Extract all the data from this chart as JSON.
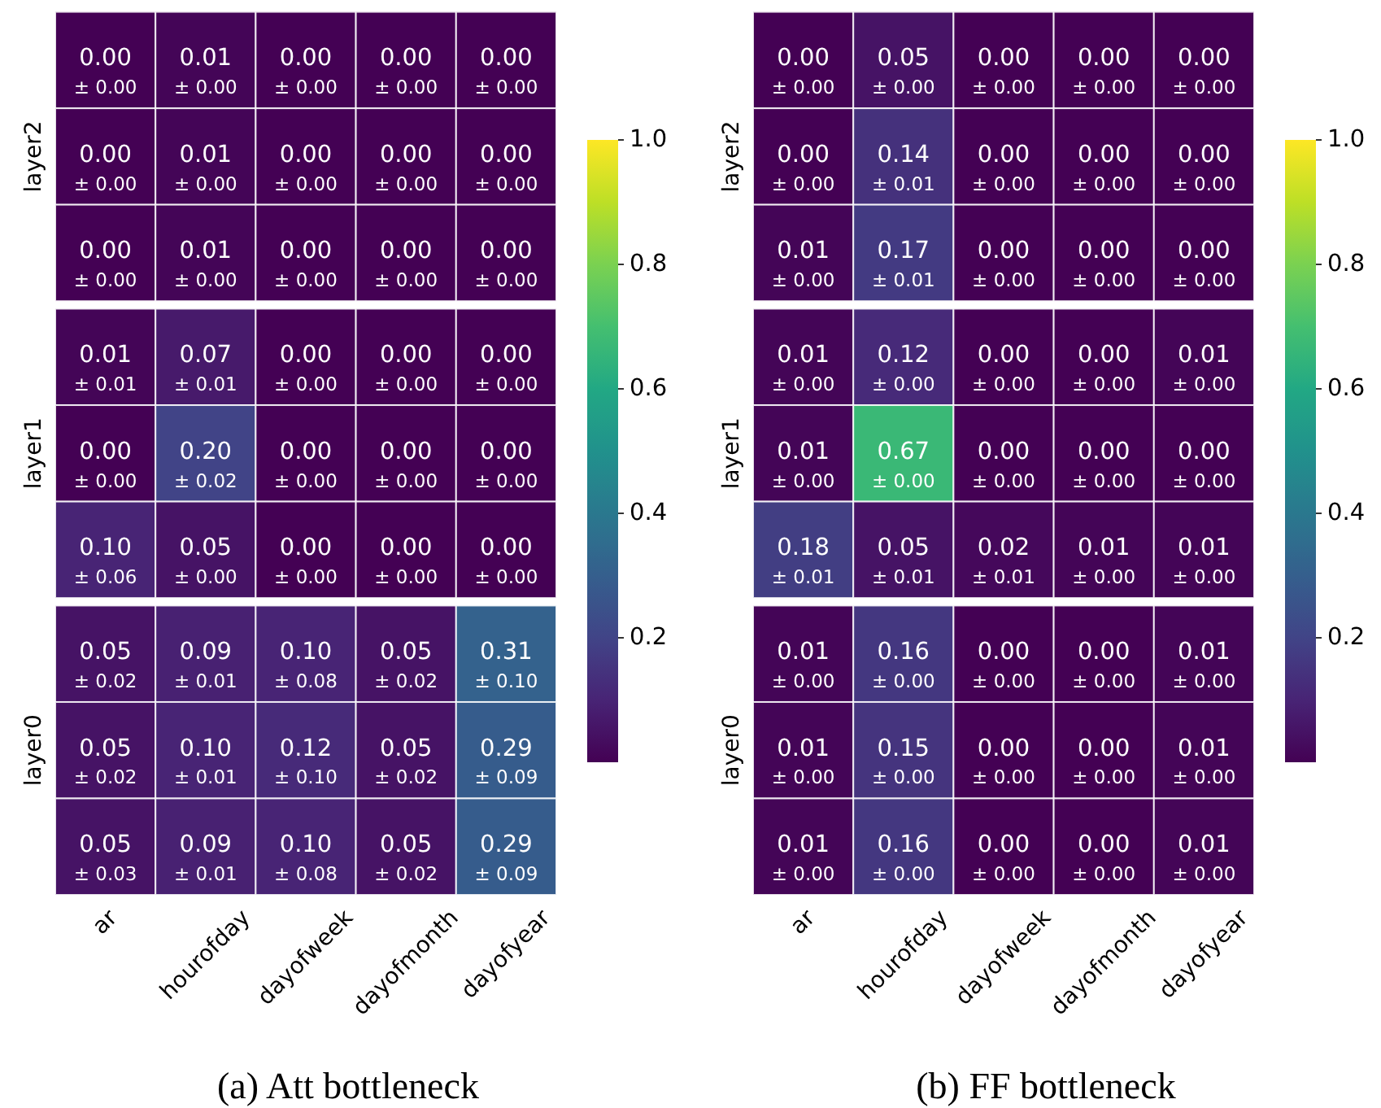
{
  "chart_data": [
    {
      "type": "heatmap",
      "categories": [
        "ar",
        "hourofday",
        "dayofweek",
        "dayofmonth",
        "dayofyear"
      ],
      "y_categories": [
        null,
        "layer2",
        null,
        null,
        "layer1",
        null,
        null,
        "layer0",
        null
      ],
      "cells": [
        [
          0,
          0.01,
          0,
          0,
          0
        ],
        [
          0,
          0.01,
          0,
          0,
          0
        ],
        [
          0,
          0.01,
          0,
          0,
          0
        ],
        [
          0.01,
          0.07,
          0,
          0,
          0
        ],
        [
          0,
          0.2,
          0,
          0,
          0
        ],
        [
          0.1,
          0.05,
          0,
          0,
          0
        ],
        [
          0.05,
          0.09,
          0.1,
          0.05,
          0.31
        ],
        [
          0.05,
          0.1,
          0.12,
          0.05,
          0.29
        ],
        [
          0.05,
          0.09,
          0.1,
          0.05,
          0.29
        ]
      ],
      "cell_labels": [
        [
          "0.00\n± 0.00",
          "0.01\n± 0.00",
          "0.00\n± 0.00",
          "0.00\n± 0.00",
          "0.00\n± 0.00"
        ],
        [
          "0.00\n± 0.00",
          "0.01\n± 0.00",
          "0.00\n± 0.00",
          "0.00\n± 0.00",
          "0.00\n± 0.00"
        ],
        [
          "0.00\n± 0.00",
          "0.01\n± 0.00",
          "0.00\n± 0.00",
          "0.00\n± 0.00",
          "0.00\n± 0.00"
        ],
        [
          "0.01\n± 0.01",
          "0.07\n± 0.01",
          "0.00\n± 0.00",
          "0.00\n± 0.00",
          "0.00\n± 0.00"
        ],
        [
          "0.00\n± 0.00",
          "0.20\n± 0.02",
          "0.00\n± 0.00",
          "0.00\n± 0.00",
          "0.00\n± 0.00"
        ],
        [
          "0.10\n± 0.06",
          "0.05\n± 0.00",
          "0.00\n± 0.00",
          "0.00\n± 0.00",
          "0.00\n± 0.00"
        ],
        [
          "0.05\n± 0.02",
          "0.09\n± 0.01",
          "0.10\n± 0.08",
          "0.05\n± 0.02",
          "0.31\n± 0.10"
        ],
        [
          "0.05\n± 0.02",
          "0.10\n± 0.01",
          "0.12\n± 0.10",
          "0.05\n± 0.02",
          "0.29\n± 0.09"
        ],
        [
          "0.05\n± 0.03",
          "0.09\n± 0.01",
          "0.10\n± 0.08",
          "0.05\n± 0.02",
          "0.29\n± 0.09"
        ]
      ],
      "clim": [
        0,
        1
      ],
      "cticks": [
        0.2,
        0.4,
        0.6,
        0.8,
        {
          "value": 1,
          "label": "1.0"
        }
      ],
      "annotations": [
        "(a) Att bottleneck"
      ]
    },
    {
      "type": "heatmap",
      "categories": [
        "ar",
        "hourofday",
        "dayofweek",
        "dayofmonth",
        "dayofyear"
      ],
      "y_categories": [
        null,
        "layer2",
        null,
        null,
        "layer1",
        null,
        null,
        "layer0",
        null
      ],
      "cells": [
        [
          0,
          0.05,
          0,
          0,
          0
        ],
        [
          0,
          0.14,
          0,
          0,
          0
        ],
        [
          0.01,
          0.17,
          0,
          0,
          0
        ],
        [
          0.01,
          0.12,
          0,
          0,
          0.01
        ],
        [
          0.01,
          0.67,
          0,
          0,
          0
        ],
        [
          0.18,
          0.05,
          0.02,
          0.01,
          0.01
        ],
        [
          0.01,
          0.16,
          0,
          0,
          0.01
        ],
        [
          0.01,
          0.15,
          0,
          0,
          0.01
        ],
        [
          0.01,
          0.16,
          0,
          0,
          0.01
        ]
      ],
      "cell_labels": [
        [
          "0.00\n± 0.00",
          "0.05\n± 0.00",
          "0.00\n± 0.00",
          "0.00\n± 0.00",
          "0.00\n± 0.00"
        ],
        [
          "0.00\n± 0.00",
          "0.14\n± 0.01",
          "0.00\n± 0.00",
          "0.00\n± 0.00",
          "0.00\n± 0.00"
        ],
        [
          "0.01\n± 0.00",
          "0.17\n± 0.01",
          "0.00\n± 0.00",
          "0.00\n± 0.00",
          "0.00\n± 0.00"
        ],
        [
          "0.01\n± 0.00",
          "0.12\n± 0.00",
          "0.00\n± 0.00",
          "0.00\n± 0.00",
          "0.01\n± 0.00"
        ],
        [
          "0.01\n± 0.00",
          "0.67\n± 0.00",
          "0.00\n± 0.00",
          "0.00\n± 0.00",
          "0.00\n± 0.00"
        ],
        [
          "0.18\n± 0.01",
          "0.05\n± 0.01",
          "0.02\n± 0.01",
          "0.01\n± 0.00",
          "0.01\n± 0.00"
        ],
        [
          "0.01\n± 0.00",
          "0.16\n± 0.00",
          "0.00\n± 0.00",
          "0.00\n± 0.00",
          "0.01\n± 0.00"
        ],
        [
          "0.01\n± 0.00",
          "0.15\n± 0.00",
          "0.00\n± 0.00",
          "0.00\n± 0.00",
          "0.01\n± 0.00"
        ],
        [
          "0.01\n± 0.00",
          "0.16\n± 0.00",
          "0.00\n± 0.00",
          "0.00\n± 0.00",
          "0.01\n± 0.00"
        ]
      ],
      "clim": [
        0,
        1
      ],
      "cticks": [
        0.2,
        0.4,
        0.6,
        0.8,
        {
          "value": 1,
          "label": "1.0"
        }
      ],
      "annotations": [
        "(b) FF bottleneck"
      ]
    }
  ]
}
